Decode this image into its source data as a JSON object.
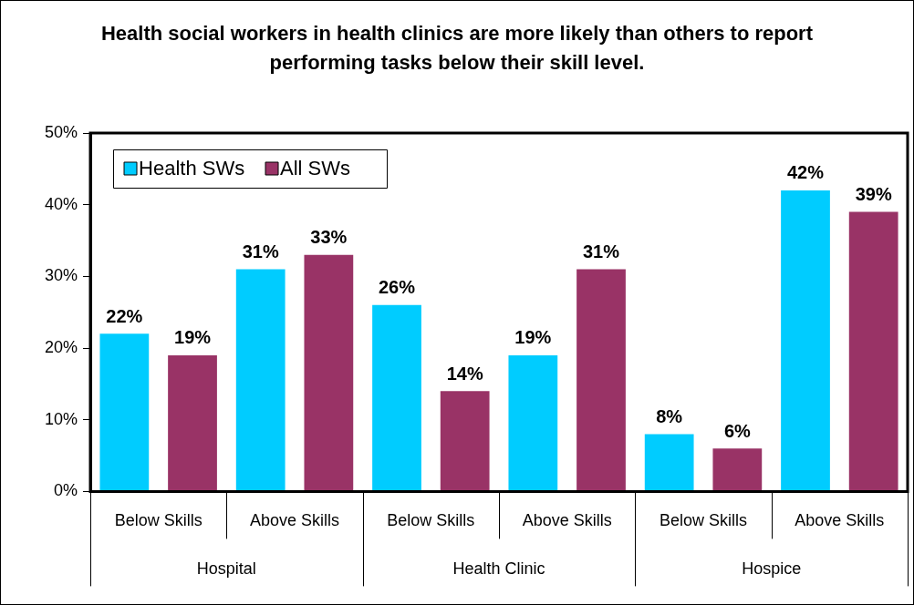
{
  "chart_data": {
    "type": "bar",
    "title": "Health social workers in health clinics are more likely than others to report performing tasks below their skill level.",
    "categories": [
      "Below Skills",
      "Above Skills",
      "Below Skills",
      "Above Skills",
      "Below Skills",
      "Above Skills"
    ],
    "annotations": [
      "Hospital",
      "Health Clinic",
      "Hospice"
    ],
    "series": [
      {
        "name": "Health SWs",
        "color": "#00ccff",
        "values": [
          22,
          31,
          26,
          19,
          8,
          42
        ],
        "value_labels": [
          "22%",
          "31%",
          "26%",
          "19%",
          "8%",
          "42%"
        ]
      },
      {
        "name": "All SWs",
        "color": "#993366",
        "values": [
          19,
          33,
          14,
          31,
          6,
          39
        ],
        "value_labels": [
          "19%",
          "33%",
          "14%",
          "31%",
          "6%",
          "39%"
        ]
      }
    ],
    "ylim": [
      0,
      50
    ],
    "yticks": [
      {
        "value": 0,
        "label": "0%"
      },
      {
        "value": 10,
        "label": "10%"
      },
      {
        "value": 20,
        "label": "20%"
      },
      {
        "value": 30,
        "label": "30%"
      },
      {
        "value": 40,
        "label": "40%"
      },
      {
        "value": 50,
        "label": "50%"
      }
    ],
    "grid": false,
    "legend": "top left"
  }
}
